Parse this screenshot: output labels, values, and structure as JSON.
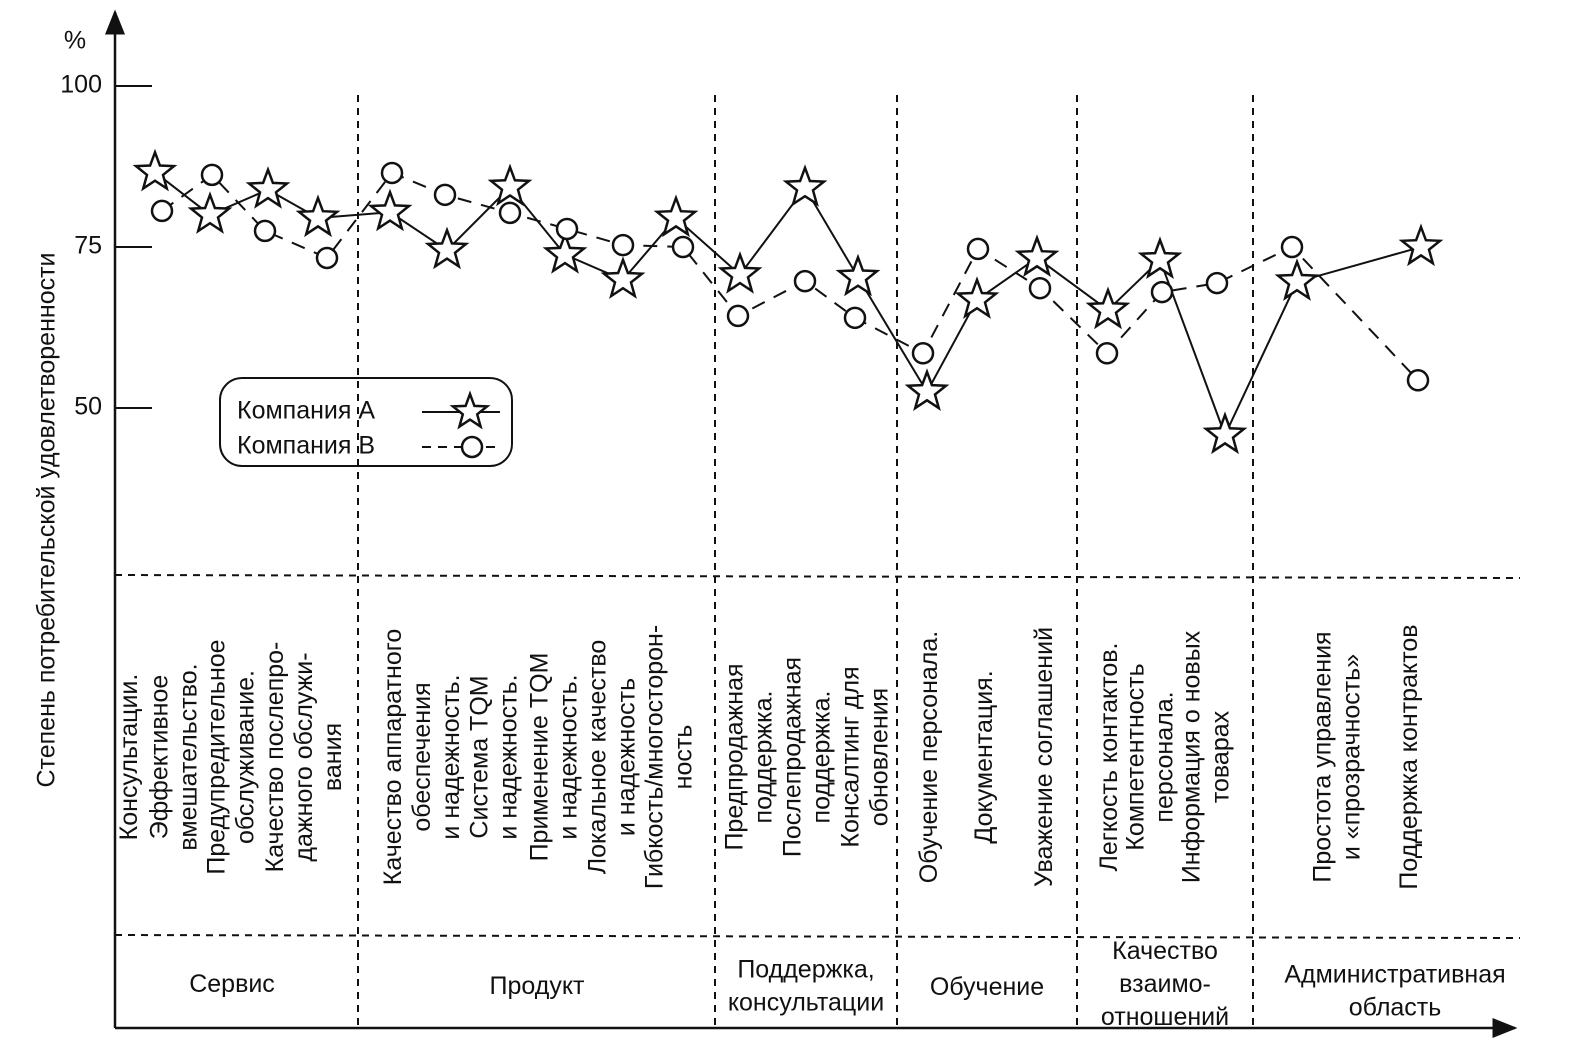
{
  "chart_data": {
    "type": "line",
    "y_label": "Степень потребительской удовлетворенности",
    "y_unit": "%",
    "ylim": [
      25,
      100
    ],
    "yticks": [
      50,
      75,
      100
    ],
    "categories": [
      "Консультации.",
      "Эффективное\nвмешательство.",
      "Предупредительное\nобслуживание.",
      "Качество послепро-\nдажного обслужи-\nвания",
      "Качество аппаратного\nобеспечения\nи надежность.",
      null,
      "Система TQM\nи надежность.",
      "Применение TQM\nи надежность.",
      "Локальное качество\nи надежность",
      "Гибкость/многосторон-\nность",
      "Предпродажная\nподдержка.",
      "Послепродажная\nподдержка.",
      "Консалтинг для\nобновления",
      "Обучение персонала.",
      "Документация.",
      "Уважение соглашений",
      "Легкость контактов.",
      "Компетентность\nперсонала.",
      "Информация о новых\nтоварах",
      "Простота управления\nи «прозрачность»",
      "Поддержка контрактов"
    ],
    "groups": [
      "Сервис",
      "Продукт",
      "Поддержка,\nконсультации",
      "Обучение",
      "Качество\nвзаимо-\nотношений",
      "Административная\nобласть"
    ],
    "series": [
      {
        "name": "Компания А",
        "color": "#111111",
        "marker": "star",
        "dashed": false,
        "values": [
          86.6,
          80,
          83.9,
          79.5,
          80.4,
          74.5,
          84.3,
          73.8,
          69.9,
          79.5,
          70.7,
          84.2,
          70.3,
          52.5,
          66.8,
          73.3,
          65.2,
          73,
          45.8,
          69.6,
          75
        ]
      },
      {
        "name": "Компания В",
        "color": "#111111",
        "marker": "circle",
        "dashed": true,
        "values": [
          80.6,
          86.2,
          77.5,
          73.3,
          86.5,
          83.1,
          80.3,
          77.8,
          75.3,
          75,
          64.3,
          69.7,
          64,
          58.5,
          74.7,
          68.6,
          58.5,
          68,
          69.4,
          75,
          54.3
        ]
      }
    ]
  }
}
